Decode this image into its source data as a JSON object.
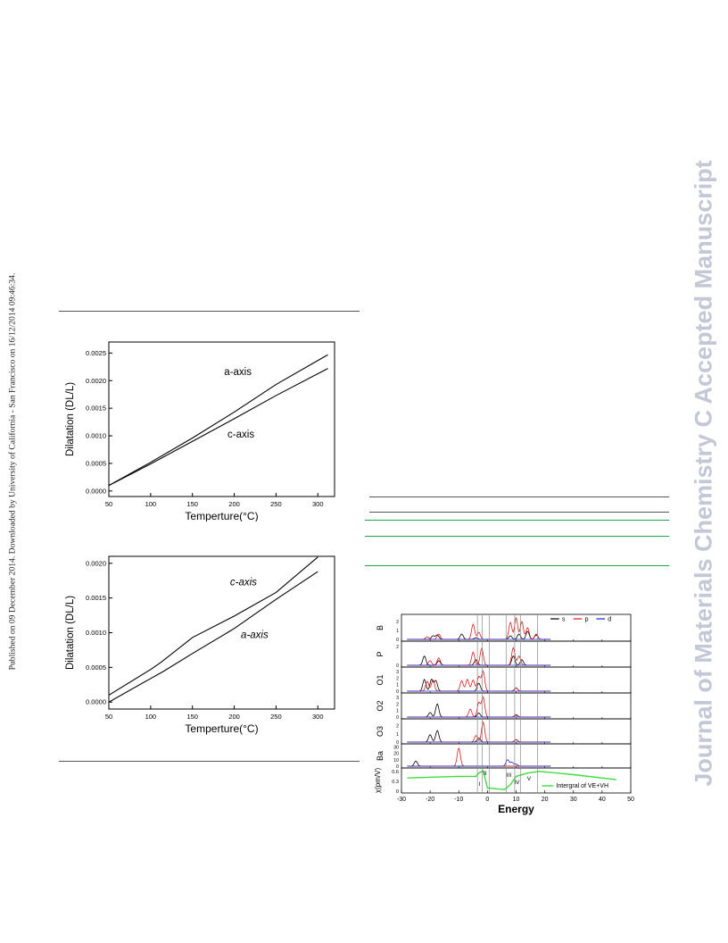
{
  "margin_left": {
    "text": "Published on 09 December 2014. Downloaded by University of California - San Francisco on 16/12/2014 09:46:34."
  },
  "margin_right": {
    "text": "Journal of Materials Chemistry C Accepted Manuscript"
  },
  "chart_data": [
    {
      "type": "line",
      "title": "",
      "xlabel": "Temperture(°C)",
      "ylabel": "Dilatation (DL/L)",
      "xlim": [
        50,
        320
      ],
      "ylim": [
        -0.0001,
        0.0027
      ],
      "xticks": [
        "50",
        "100",
        "150",
        "200",
        "250",
        "300"
      ],
      "yticks": [
        "0.0000",
        "0.0005",
        "0.0010",
        "0.0015",
        "0.0020",
        "0.0025"
      ],
      "annotations": [
        "a-axis",
        "c-axis"
      ],
      "series": [
        {
          "name": "a-axis",
          "x": [
            50,
            100,
            150,
            200,
            250,
            312
          ],
          "y": [
            0.0001,
            0.00052,
            0.00096,
            0.00143,
            0.00193,
            0.00247
          ]
        },
        {
          "name": "c-axis",
          "x": [
            50,
            100,
            150,
            200,
            250,
            312
          ],
          "y": [
            0.0001,
            0.00049,
            0.0009,
            0.00131,
            0.00173,
            0.00222
          ]
        }
      ]
    },
    {
      "type": "line",
      "title": "",
      "xlabel": "Temperture(°C)",
      "ylabel": "Dilatation (DL/L)",
      "xlim": [
        50,
        320
      ],
      "ylim": [
        -0.0001,
        0.0021
      ],
      "xticks": [
        "50",
        "100",
        "150",
        "200",
        "250",
        "300"
      ],
      "yticks": [
        "0.0000",
        "0.0005",
        "0.0010",
        "0.0015",
        "0.0020"
      ],
      "annotations": [
        "c-axis",
        "a-axis"
      ],
      "series": [
        {
          "name": "c-axis",
          "x": [
            50,
            100,
            112,
            150,
            200,
            250,
            300
          ],
          "y": [
            0.0001,
            0.00047,
            0.00057,
            0.00093,
            0.00124,
            0.00158,
            0.00209
          ]
        },
        {
          "name": "a-axis",
          "x": [
            50,
            100,
            115,
            150,
            200,
            250,
            300
          ],
          "y": [
            0.0,
            0.00034,
            0.00044,
            0.0007,
            0.00106,
            0.00148,
            0.00188
          ]
        }
      ]
    },
    {
      "type": "line",
      "title": "",
      "xlabel": "Energy",
      "ylabel": "χ(pm/V)",
      "xlim": [
        -30,
        50
      ],
      "xticks": [
        "-30",
        "-20",
        "-10",
        "0",
        "10",
        "20",
        "30",
        "40",
        "50"
      ],
      "legend": [
        "s",
        "p",
        "d"
      ],
      "legend_placement": "top-right",
      "panel_labels": [
        "B",
        "P",
        "O1",
        "O2",
        "O3",
        "Ba"
      ],
      "region_labels": [
        "I",
        "II",
        "III",
        "IV",
        "V"
      ],
      "bottom_legend": "Intergral of VE+VH",
      "bottom_yticks": [
        "0.6",
        "0.3",
        "0"
      ],
      "panel_yticks": {
        "B": [
          "2",
          "1",
          "0"
        ],
        "P": [
          "2",
          "0"
        ],
        "O1": [
          "3",
          "2",
          "1",
          "0"
        ],
        "O2": [
          "3",
          "2",
          "1",
          "0"
        ],
        "O3": [
          "2",
          "1",
          "0"
        ],
        "Ba": [
          "30",
          "20",
          "10",
          "0"
        ]
      },
      "colors": {
        "s": "#000000",
        "p": "#e01b1b",
        "d": "#1a22d6",
        "integral": "#3fdc3f"
      },
      "integral_series": {
        "x": [
          -28,
          -10,
          -4,
          -3,
          -1.5,
          0,
          6,
          8,
          10,
          14,
          18,
          30,
          45
        ],
        "y": [
          0.4,
          0.45,
          0.45,
          0.55,
          0.62,
          0.1,
          0.05,
          0.2,
          0.45,
          0.55,
          0.6,
          0.5,
          0.35
        ]
      }
    }
  ]
}
